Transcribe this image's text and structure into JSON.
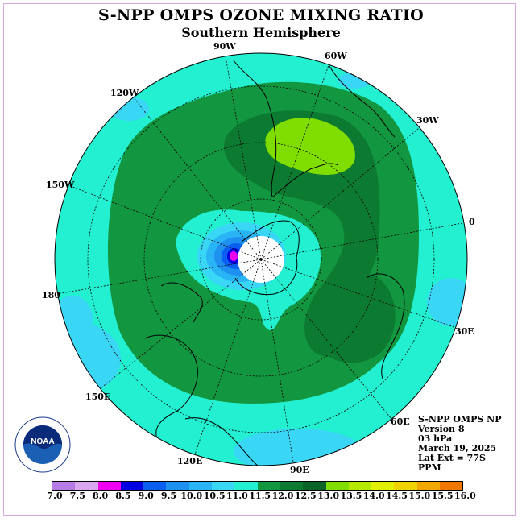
{
  "title": "S-NPP OMPS OZONE MIXING RATIO",
  "subtitle": "Southern Hemisphere",
  "longitude_labels": [
    "90W",
    "60W",
    "30W",
    "0",
    "30E",
    "60E",
    "90E",
    "120E",
    "150E",
    "180",
    "150W",
    "120W"
  ],
  "info": {
    "line1": "S-NPP OMPS NP",
    "line2": "Version 8",
    "line3": "03 hPa",
    "line4": "March 19, 2025",
    "line5": "Lat Ext = 77S",
    "line6": "PPM"
  },
  "logo_text": "NOAA",
  "colorbar": {
    "ticks": [
      "7.0",
      "7.5",
      "8.0",
      "8.5",
      "9.0",
      "9.5",
      "10.0",
      "10.5",
      "11.0",
      "11.5",
      "12.0",
      "12.5",
      "13.0",
      "13.5",
      "14.0",
      "14.5",
      "15.0",
      "15.5",
      "16.0"
    ],
    "colors": [
      "#b77be8",
      "#d9a7ef",
      "#f000f0",
      "#0000e0",
      "#0a5ff0",
      "#1e90f0",
      "#28b4f5",
      "#39d6f5",
      "#22f0d0",
      "#129640",
      "#0c7a30",
      "#0a6428",
      "#80dd00",
      "#b6e800",
      "#e0f000",
      "#f0d200",
      "#f0a800",
      "#f07800",
      "#f00000",
      "#f05050",
      "#8b5a3c"
    ]
  }
}
